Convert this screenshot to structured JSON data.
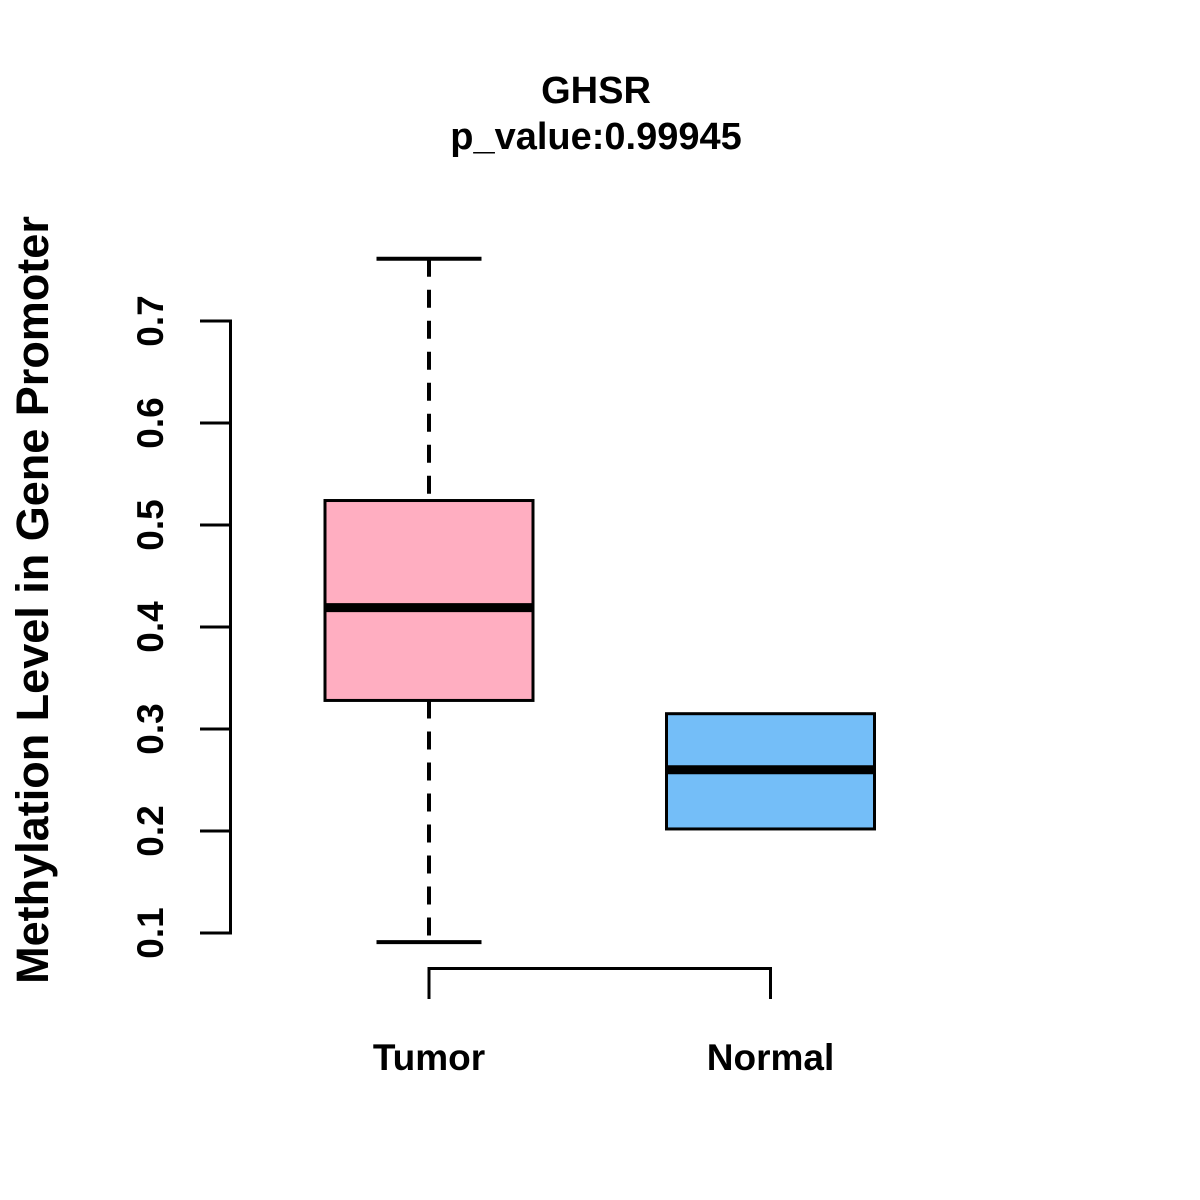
{
  "title": {
    "line1": "GHSR",
    "line2": "p_value:0.99945"
  },
  "y_axis": {
    "label": "Methylation Level in Gene Promoter",
    "tick_labels": [
      "0.1",
      "0.2",
      "0.3",
      "0.4",
      "0.5",
      "0.6",
      "0.7"
    ]
  },
  "x_axis": {
    "categories": [
      "Tumor",
      "Normal"
    ]
  },
  "chart_data": {
    "type": "boxplot",
    "title": "GHSR",
    "subtitle": "p_value:0.99945",
    "ylabel": "Methylation Level in Gene Promoter",
    "categories": [
      "Tumor",
      "Normal"
    ],
    "series": [
      {
        "name": "Tumor",
        "color": "#FFAEC1",
        "whisker_low": 0.091,
        "q1": 0.328,
        "median": 0.419,
        "q3": 0.524,
        "whisker_high": 0.761
      },
      {
        "name": "Normal",
        "color": "#74BEF8",
        "whisker_low": 0.202,
        "q1": 0.202,
        "median": 0.26,
        "q3": 0.315,
        "whisker_high": 0.315
      }
    ],
    "ylim": [
      0.1,
      0.7
    ],
    "yticks": [
      0.1,
      0.2,
      0.3,
      0.4,
      0.5,
      0.6,
      0.7
    ],
    "grid": false,
    "legend": "none",
    "colors": {
      "box_tumor": "#FFAEC1",
      "box_normal": "#74BEF8",
      "line": "#000000",
      "background": "#FFFFFF"
    }
  }
}
